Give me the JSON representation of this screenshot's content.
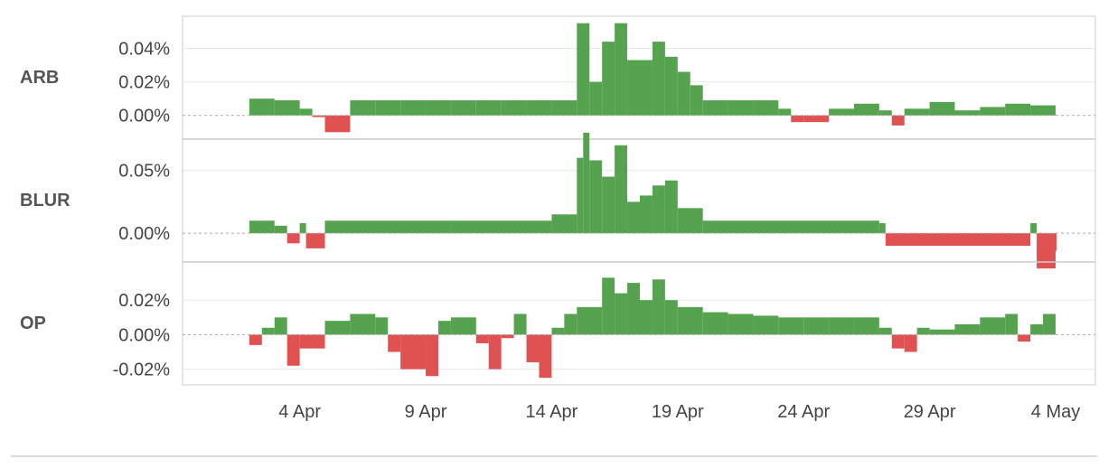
{
  "colors": {
    "positive": "#55a24f",
    "negative": "#e05252",
    "grid": "#e8e8e8",
    "zero": "#aaaaaa",
    "border": "#cccccc"
  },
  "chart_data": {
    "type": "bar",
    "x_axis": {
      "start": "2023-04-01",
      "end": "2023-05-04",
      "ticks": [
        {
          "date": "2023-04-04",
          "label": "4 Apr"
        },
        {
          "date": "2023-04-09",
          "label": "9 Apr"
        },
        {
          "date": "2023-04-14",
          "label": "14 Apr"
        },
        {
          "date": "2023-04-19",
          "label": "19 Apr"
        },
        {
          "date": "2023-04-24",
          "label": "24 Apr"
        },
        {
          "date": "2023-04-29",
          "label": "29 Apr"
        },
        {
          "date": "2023-05-04",
          "label": "4 May"
        }
      ]
    },
    "panels": [
      {
        "label": "ARB",
        "ylim": [
          -0.012,
          0.057
        ],
        "yticks": [
          {
            "value": 0.0,
            "label": "0.00%"
          },
          {
            "value": 0.02,
            "label": "0.02%"
          },
          {
            "value": 0.04,
            "label": "0.04%"
          }
        ],
        "series": [
          [
            "2023-04-02",
            0.01
          ],
          [
            "2023-04-03",
            0.009
          ],
          [
            "2023-04-04",
            0.004
          ],
          [
            "2023-04-04T12",
            -0.001
          ],
          [
            "2023-04-05",
            -0.01
          ],
          [
            "2023-04-06",
            0.009
          ],
          [
            "2023-04-07",
            0.009
          ],
          [
            "2023-04-08",
            0.009
          ],
          [
            "2023-04-09",
            0.009
          ],
          [
            "2023-04-10",
            0.009
          ],
          [
            "2023-04-11",
            0.009
          ],
          [
            "2023-04-12",
            0.009
          ],
          [
            "2023-04-13",
            0.009
          ],
          [
            "2023-04-14",
            0.009
          ],
          [
            "2023-04-15",
            0.055
          ],
          [
            "2023-04-15T12",
            0.02
          ],
          [
            "2023-04-16",
            0.044
          ],
          [
            "2023-04-16T12",
            0.055
          ],
          [
            "2023-04-17",
            0.033
          ],
          [
            "2023-04-18",
            0.044
          ],
          [
            "2023-04-18T12",
            0.035
          ],
          [
            "2023-04-19",
            0.026
          ],
          [
            "2023-04-19T12",
            0.018
          ],
          [
            "2023-04-20",
            0.009
          ],
          [
            "2023-04-21",
            0.009
          ],
          [
            "2023-04-22",
            0.009
          ],
          [
            "2023-04-23",
            0.004
          ],
          [
            "2023-04-23T12",
            -0.004
          ],
          [
            "2023-04-24",
            -0.004
          ],
          [
            "2023-04-25",
            0.004
          ],
          [
            "2023-04-26",
            0.007
          ],
          [
            "2023-04-27",
            0.003
          ],
          [
            "2023-04-27T12",
            -0.006
          ],
          [
            "2023-04-28",
            0.004
          ],
          [
            "2023-04-29",
            0.008
          ],
          [
            "2023-04-30",
            0.003
          ],
          [
            "2023-05-01",
            0.005
          ],
          [
            "2023-05-02",
            0.007
          ],
          [
            "2023-05-03",
            0.006
          ]
        ]
      },
      {
        "label": "BLUR",
        "ylim": [
          -0.02,
          0.072
        ],
        "yticks": [
          {
            "value": 0.0,
            "label": "0.00%"
          },
          {
            "value": 0.05,
            "label": "0.05%"
          }
        ],
        "series": [
          [
            "2023-04-02",
            0.01
          ],
          [
            "2023-04-03",
            0.006
          ],
          [
            "2023-04-03T12",
            -0.008
          ],
          [
            "2023-04-04",
            0.008
          ],
          [
            "2023-04-04T06",
            -0.012
          ],
          [
            "2023-04-05",
            0.01
          ],
          [
            "2023-04-10",
            0.01
          ],
          [
            "2023-04-14",
            0.015
          ],
          [
            "2023-04-15",
            0.06
          ],
          [
            "2023-04-15T06",
            0.08
          ],
          [
            "2023-04-15T12",
            0.058
          ],
          [
            "2023-04-16",
            0.045
          ],
          [
            "2023-04-16T12",
            0.07
          ],
          [
            "2023-04-17",
            0.025
          ],
          [
            "2023-04-17T12",
            0.03
          ],
          [
            "2023-04-18",
            0.038
          ],
          [
            "2023-04-18T12",
            0.042
          ],
          [
            "2023-04-19",
            0.02
          ],
          [
            "2023-04-20",
            0.01
          ],
          [
            "2023-04-27",
            0.008
          ],
          [
            "2023-04-27T06",
            -0.01
          ],
          [
            "2023-05-03",
            0.008
          ],
          [
            "2023-05-03T06",
            -0.028
          ],
          [
            "2023-05-04",
            -0.014
          ]
        ]
      },
      {
        "label": "OP",
        "ylim": [
          -0.027,
          0.04
        ],
        "yticks": [
          {
            "value": -0.02,
            "label": "-0.02%"
          },
          {
            "value": 0.0,
            "label": "0.00%"
          },
          {
            "value": 0.02,
            "label": "0.02%"
          }
        ],
        "series": [
          [
            "2023-04-02",
            -0.006
          ],
          [
            "2023-04-02T12",
            0.004
          ],
          [
            "2023-04-03",
            0.01
          ],
          [
            "2023-04-03T12",
            -0.018
          ],
          [
            "2023-04-04",
            -0.008
          ],
          [
            "2023-04-05",
            0.008
          ],
          [
            "2023-04-06",
            0.012
          ],
          [
            "2023-04-07",
            0.01
          ],
          [
            "2023-04-07T12",
            -0.01
          ],
          [
            "2023-04-08",
            -0.02
          ],
          [
            "2023-04-09",
            -0.024
          ],
          [
            "2023-04-09T12",
            0.008
          ],
          [
            "2023-04-10",
            0.01
          ],
          [
            "2023-04-11",
            -0.005
          ],
          [
            "2023-04-11T12",
            -0.02
          ],
          [
            "2023-04-12",
            -0.002
          ],
          [
            "2023-04-12T12",
            0.012
          ],
          [
            "2023-04-13",
            -0.016
          ],
          [
            "2023-04-13T12",
            -0.025
          ],
          [
            "2023-04-14",
            0.004
          ],
          [
            "2023-04-14T12",
            0.012
          ],
          [
            "2023-04-15",
            0.016
          ],
          [
            "2023-04-16",
            0.033
          ],
          [
            "2023-04-16T12",
            0.024
          ],
          [
            "2023-04-17",
            0.03
          ],
          [
            "2023-04-17T12",
            0.02
          ],
          [
            "2023-04-18",
            0.032
          ],
          [
            "2023-04-18T12",
            0.02
          ],
          [
            "2023-04-19",
            0.016
          ],
          [
            "2023-04-20",
            0.013
          ],
          [
            "2023-04-21",
            0.012
          ],
          [
            "2023-04-22",
            0.011
          ],
          [
            "2023-04-23",
            0.01
          ],
          [
            "2023-04-24",
            0.01
          ],
          [
            "2023-04-25",
            0.01
          ],
          [
            "2023-04-26",
            0.01
          ],
          [
            "2023-04-27",
            0.004
          ],
          [
            "2023-04-27T12",
            -0.008
          ],
          [
            "2023-04-28",
            -0.01
          ],
          [
            "2023-04-28T12",
            0.004
          ],
          [
            "2023-04-29",
            0.003
          ],
          [
            "2023-04-30",
            0.006
          ],
          [
            "2023-05-01",
            0.01
          ],
          [
            "2023-05-02",
            0.012
          ],
          [
            "2023-05-02T12",
            -0.004
          ],
          [
            "2023-05-03",
            0.006
          ],
          [
            "2023-05-03T12",
            0.012
          ]
        ]
      }
    ]
  }
}
